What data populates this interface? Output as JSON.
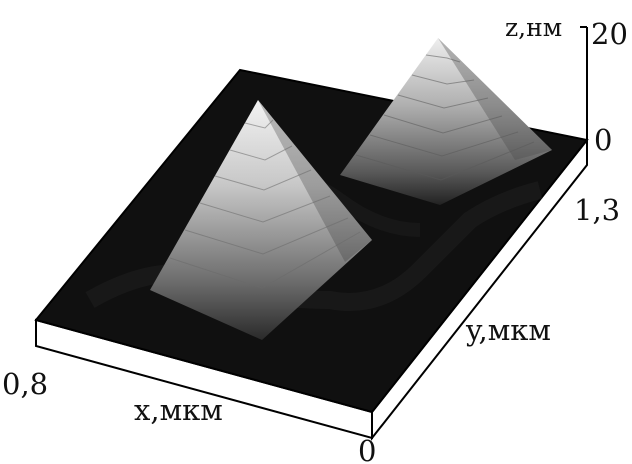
{
  "figure": {
    "z_axis": {
      "label": "z,нм",
      "tick_top": "20",
      "tick_bottom": "0"
    },
    "y_axis": {
      "label": "y,мкм",
      "tick_end": "1,3"
    },
    "x_axis": {
      "label": "x,мкм",
      "tick_end": "0,8",
      "tick_origin": "0"
    },
    "colors": {
      "surface": "#101010",
      "box_side": "#ffffff",
      "outline": "#000000"
    }
  }
}
